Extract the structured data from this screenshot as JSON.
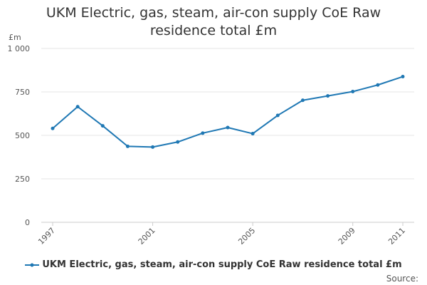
{
  "chart_data": {
    "type": "line",
    "title": "UKM Electric, gas, steam, air-con supply CoE Raw residence total £m",
    "ylabel": "£m",
    "xlabel": "",
    "ylim": [
      0,
      1000
    ],
    "yticks": [
      0,
      250,
      500,
      750,
      1000
    ],
    "ytick_labels": [
      "0",
      "250",
      "500",
      "750",
      "1 000"
    ],
    "xticks": [
      1997,
      2001,
      2005,
      2009,
      2011
    ],
    "xlim": [
      1997,
      2011
    ],
    "series": [
      {
        "name": "UKM Electric, gas, steam, air-con supply CoE Raw residence total £m",
        "color": "#1f78b4",
        "x": [
          1997,
          1998,
          1999,
          2000,
          2001,
          2002,
          2003,
          2004,
          2005,
          2006,
          2007,
          2008,
          2009,
          2010,
          2011
        ],
        "values": [
          540,
          665,
          555,
          437,
          433,
          462,
          513,
          545,
          510,
          615,
          702,
          727,
          752,
          790,
          838
        ]
      }
    ],
    "grid": true,
    "legend": "bottom"
  },
  "footer": {
    "source_label": "Source:"
  }
}
